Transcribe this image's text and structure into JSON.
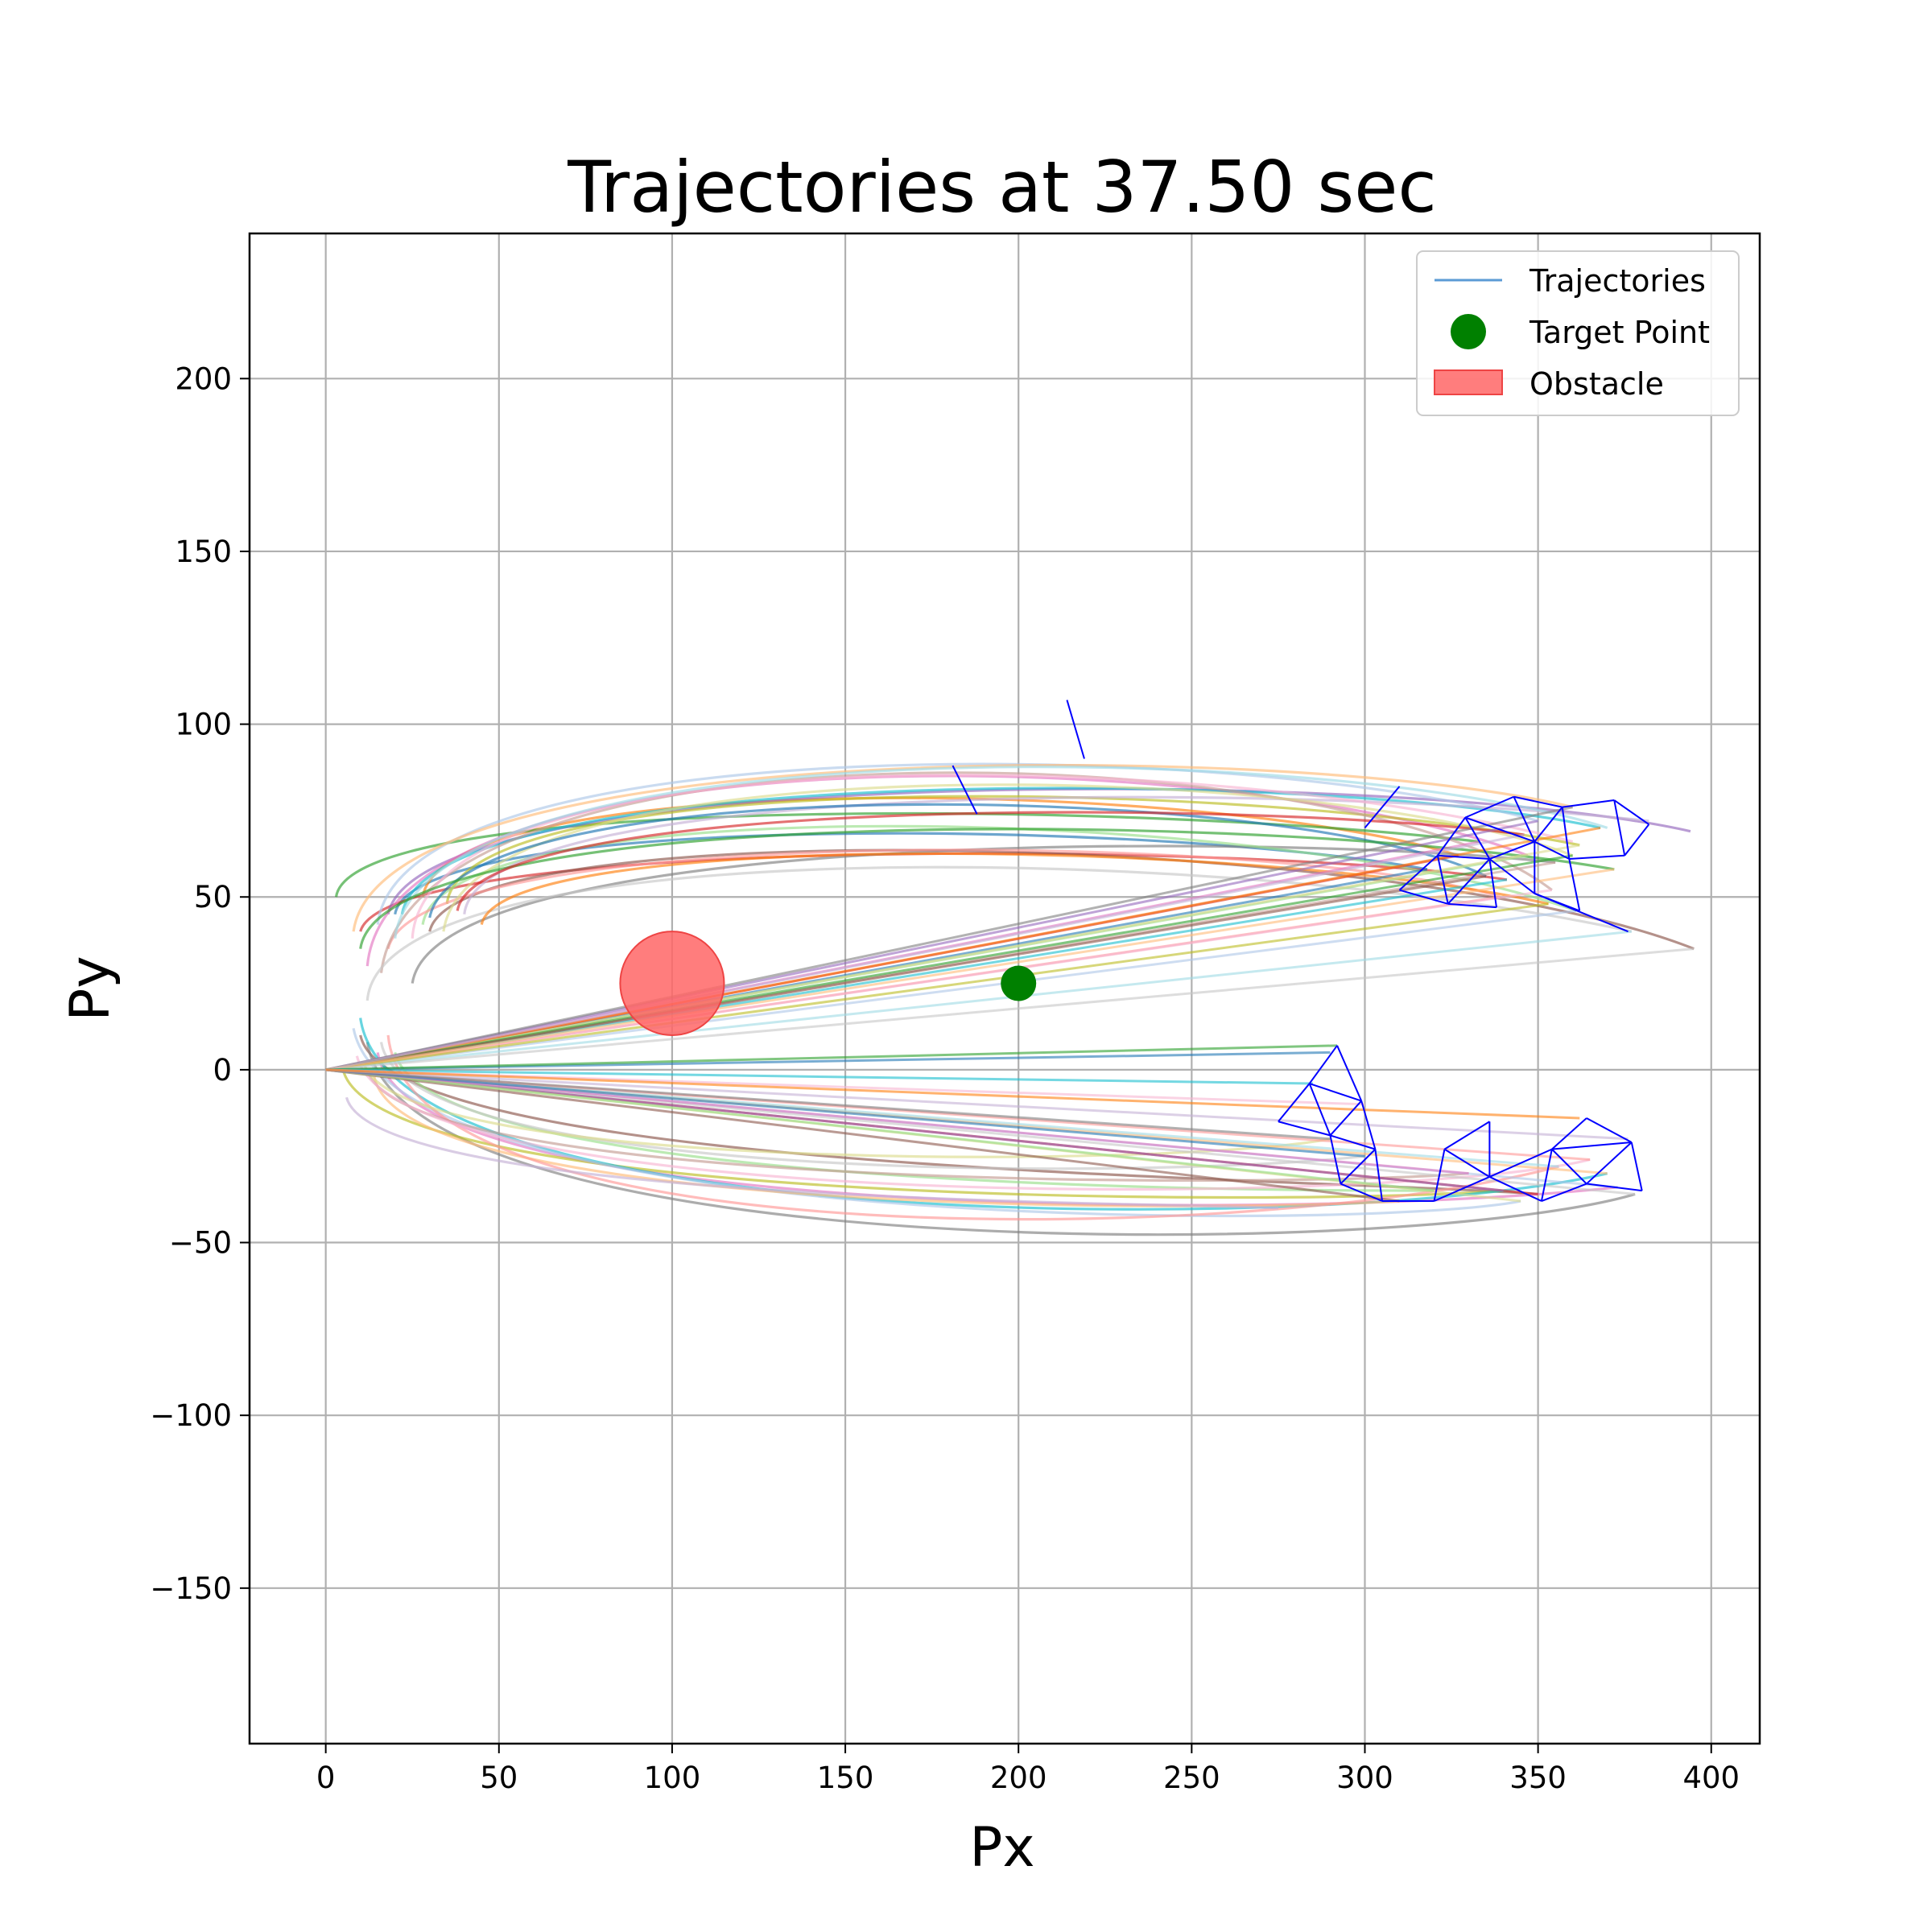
{
  "chart_data": {
    "type": "line",
    "title": "Trajectories at 37.50 sec",
    "xlabel": "Px",
    "ylabel": "Py",
    "xlim": [
      -22,
      414
    ],
    "ylim": [
      -195,
      242
    ],
    "xticks": [
      0,
      50,
      100,
      150,
      200,
      250,
      300,
      350,
      400
    ],
    "yticks": [
      -150,
      -100,
      -50,
      0,
      50,
      100,
      150,
      200
    ],
    "xtick_labels": [
      "0",
      "50",
      "100",
      "150",
      "200",
      "250",
      "300",
      "350",
      "400"
    ],
    "ytick_labels": [
      "−150",
      "−100",
      "−50",
      "0",
      "50",
      "100",
      "150",
      "200"
    ],
    "grid": true,
    "legend": {
      "position": "top-right",
      "entries": [
        {
          "label": "Trajectories",
          "kind": "line",
          "color": "#5b9bd5"
        },
        {
          "label": "Target Point",
          "kind": "marker",
          "color": "#008000"
        },
        {
          "label": "Obstacle",
          "kind": "patch",
          "color": "#ff6666"
        }
      ]
    },
    "target_point": {
      "x": 200,
      "y": 25,
      "color": "#008000"
    },
    "obstacle": {
      "cx": 100,
      "cy": 25,
      "r": 15,
      "color": "#ff6666"
    },
    "colors": [
      "#1f77b4",
      "#ff7f0e",
      "#2ca02c",
      "#d62728",
      "#9467bd",
      "#8c564b",
      "#e377c2",
      "#7f7f7f",
      "#bcbd22",
      "#17becf",
      "#aec7e8",
      "#ffbb78",
      "#98df8a",
      "#ff9896",
      "#c5b0d5",
      "#c49c94",
      "#f7b6d2",
      "#c7c7c7",
      "#dbdb8d",
      "#9edae5"
    ],
    "upper_trajectories": [
      {
        "s": [
          20,
          45
        ],
        "o": [
          120,
          75
        ],
        "e": [
          318,
          58
        ]
      },
      {
        "s": [
          28,
          50
        ],
        "o": [
          150,
          88
        ],
        "e": [
          327,
          62
        ]
      },
      {
        "s": [
          3,
          50
        ],
        "o": [
          80,
          80
        ],
        "e": [
          333,
          66
        ]
      },
      {
        "s": [
          10,
          40
        ],
        "o": [
          160,
          68
        ],
        "e": [
          341,
          55
        ]
      },
      {
        "s": [
          18,
          45
        ],
        "o": [
          200,
          90
        ],
        "e": [
          394,
          69
        ]
      },
      {
        "s": [
          30,
          40
        ],
        "o": [
          180,
          75
        ],
        "e": [
          395,
          35
        ]
      },
      {
        "s": [
          12,
          30
        ],
        "o": [
          140,
          100
        ],
        "e": [
          347,
          62
        ]
      },
      {
        "s": [
          25,
          25
        ],
        "o": [
          160,
          70
        ],
        "e": [
          355,
          60
        ]
      },
      {
        "s": [
          35,
          48
        ],
        "o": [
          120,
          88
        ],
        "e": [
          362,
          65
        ]
      },
      {
        "s": [
          22,
          45
        ],
        "o": [
          180,
          90
        ],
        "e": [
          368,
          70
        ]
      },
      {
        "s": [
          15,
          42
        ],
        "o": [
          140,
          100
        ],
        "e": [
          350,
          72
        ]
      },
      {
        "s": [
          8,
          40
        ],
        "o": [
          170,
          98
        ],
        "e": [
          360,
          76
        ]
      },
      {
        "s": [
          28,
          42
        ],
        "o": [
          150,
          82
        ],
        "e": [
          361,
          46
        ]
      },
      {
        "s": [
          18,
          35
        ],
        "o": [
          190,
          72
        ],
        "e": [
          339,
          50
        ]
      },
      {
        "s": [
          40,
          45
        ],
        "o": [
          130,
          85
        ],
        "e": [
          382,
          72
        ]
      },
      {
        "s": [
          16,
          28
        ],
        "o": [
          210,
          105
        ],
        "e": [
          354,
          52
        ]
      },
      {
        "s": [
          25,
          38
        ],
        "o": [
          100,
          98
        ],
        "e": [
          360,
          66
        ]
      },
      {
        "s": [
          12,
          20
        ],
        "o": [
          90,
          70
        ],
        "e": [
          377,
          40
        ]
      },
      {
        "s": [
          34,
          40
        ],
        "o": [
          180,
          95
        ],
        "e": [
          360,
          62
        ]
      },
      {
        "s": [
          20,
          38
        ],
        "o": [
          170,
          100
        ],
        "e": [
          370,
          70
        ]
      },
      {
        "s": [
          30,
          44
        ],
        "o": [
          200,
          88
        ],
        "e": [
          335,
          56
        ]
      },
      {
        "s": [
          45,
          42
        ],
        "o": [
          150,
          70
        ],
        "e": [
          353,
          48
        ]
      },
      {
        "s": [
          10,
          35
        ],
        "o": [
          130,
          78
        ],
        "e": [
          372,
          58
        ]
      },
      {
        "s": [
          38,
          46
        ],
        "o": [
          160,
          80
        ],
        "e": [
          346,
          68
        ]
      }
    ],
    "lower_trajectories": [
      {
        "s": [
          10,
          10
        ],
        "o": [
          180,
          -30
        ],
        "e": [
          350,
          -36
        ]
      },
      {
        "s": [
          15,
          5
        ],
        "o": [
          160,
          -45
        ],
        "e": [
          373,
          -34
        ]
      },
      {
        "s": [
          12,
          8
        ],
        "o": [
          220,
          -58
        ],
        "e": [
          378,
          -36
        ]
      },
      {
        "s": [
          5,
          0
        ],
        "o": [
          200,
          -40
        ],
        "e": [
          340,
          -35
        ]
      },
      {
        "s": [
          10,
          15
        ],
        "o": [
          190,
          -50
        ],
        "e": [
          370,
          -30
        ]
      },
      {
        "s": [
          8,
          12
        ],
        "o": [
          240,
          -48
        ],
        "e": [
          345,
          -38
        ]
      },
      {
        "s": [
          14,
          -2
        ],
        "o": [
          170,
          -42
        ],
        "e": [
          310,
          -38
        ]
      },
      {
        "s": [
          20,
          5
        ],
        "o": [
          210,
          -35
        ],
        "e": [
          320,
          -35
        ]
      },
      {
        "s": [
          18,
          10
        ],
        "o": [
          140,
          -55
        ],
        "e": [
          356,
          -28
        ]
      },
      {
        "s": [
          6,
          -8
        ],
        "o": [
          160,
          -38
        ],
        "e": [
          275,
          -40
        ]
      },
      {
        "s": [
          12,
          0
        ],
        "o": [
          200,
          -35
        ],
        "e": [
          330,
          -30
        ]
      },
      {
        "s": [
          9,
          4
        ],
        "o": [
          230,
          -42
        ],
        "e": [
          365,
          -26
        ]
      },
      {
        "s": [
          16,
          8
        ],
        "o": [
          150,
          -33
        ],
        "e": [
          300,
          -25
        ]
      },
      {
        "s": [
          11,
          2
        ],
        "o": [
          180,
          -30
        ],
        "e": [
          290,
          -20
        ]
      }
    ],
    "fan_lines_upper_ends": [
      [
        318,
        58
      ],
      [
        327,
        62
      ],
      [
        333,
        66
      ],
      [
        341,
        55
      ],
      [
        347,
        62
      ],
      [
        355,
        60
      ],
      [
        362,
        65
      ],
      [
        368,
        70
      ],
      [
        350,
        72
      ],
      [
        360,
        76
      ],
      [
        361,
        46
      ],
      [
        339,
        50
      ],
      [
        354,
        52
      ],
      [
        377,
        40
      ],
      [
        360,
        62
      ],
      [
        335,
        56
      ],
      [
        353,
        48
      ],
      [
        372,
        58
      ],
      [
        346,
        68
      ],
      [
        395,
        35
      ],
      [
        290,
        5
      ]
    ],
    "fan_lines_lower_ends": [
      [
        292,
        7
      ],
      [
        285,
        -4
      ],
      [
        300,
        -10
      ],
      [
        350,
        -36
      ],
      [
        373,
        -34
      ],
      [
        378,
        -36
      ],
      [
        340,
        -35
      ],
      [
        370,
        -30
      ],
      [
        345,
        -38
      ],
      [
        310,
        -38
      ],
      [
        320,
        -35
      ],
      [
        356,
        -28
      ],
      [
        330,
        -30
      ],
      [
        365,
        -26
      ],
      [
        300,
        -25
      ],
      [
        290,
        -20
      ],
      [
        376,
        -20
      ],
      [
        362,
        -14
      ]
    ],
    "formation_segments": [
      [
        [
          310,
          52
        ],
        [
          321,
          62
        ]
      ],
      [
        [
          321,
          62
        ],
        [
          324,
          48
        ]
      ],
      [
        [
          324,
          48
        ],
        [
          310,
          52
        ]
      ],
      [
        [
          321,
          62
        ],
        [
          329,
          73
        ]
      ],
      [
        [
          329,
          73
        ],
        [
          336,
          61
        ]
      ],
      [
        [
          336,
          61
        ],
        [
          321,
          62
        ]
      ],
      [
        [
          324,
          48
        ],
        [
          336,
          61
        ]
      ],
      [
        [
          336,
          61
        ],
        [
          338,
          47
        ]
      ],
      [
        [
          338,
          47
        ],
        [
          324,
          48
        ]
      ],
      [
        [
          329,
          73
        ],
        [
          343,
          79
        ]
      ],
      [
        [
          343,
          79
        ],
        [
          349,
          66
        ]
      ],
      [
        [
          349,
          66
        ],
        [
          329,
          73
        ]
      ],
      [
        [
          336,
          61
        ],
        [
          349,
          66
        ]
      ],
      [
        [
          349,
          66
        ],
        [
          349,
          51
        ]
      ],
      [
        [
          349,
          51
        ],
        [
          336,
          61
        ]
      ],
      [
        [
          343,
          79
        ],
        [
          357,
          76
        ]
      ],
      [
        [
          357,
          76
        ],
        [
          349,
          66
        ]
      ],
      [
        [
          349,
          66
        ],
        [
          359,
          61
        ]
      ],
      [
        [
          359,
          61
        ],
        [
          357,
          76
        ]
      ],
      [
        [
          357,
          76
        ],
        [
          372,
          78
        ]
      ],
      [
        [
          372,
          78
        ],
        [
          375,
          62
        ]
      ],
      [
        [
          375,
          62
        ],
        [
          359,
          61
        ]
      ],
      [
        [
          372,
          78
        ],
        [
          382,
          71
        ]
      ],
      [
        [
          382,
          71
        ],
        [
          375,
          62
        ]
      ],
      [
        [
          349,
          51
        ],
        [
          362,
          46
        ]
      ],
      [
        [
          362,
          46
        ],
        [
          359,
          61
        ]
      ],
      [
        [
          349,
          51
        ],
        [
          376,
          40
        ]
      ],
      [
        [
          300,
          70
        ],
        [
          310,
          82
        ]
      ],
      [
        [
          181,
          88
        ],
        [
          188,
          74
        ]
      ],
      [
        [
          214,
          107
        ],
        [
          219,
          90
        ]
      ],
      [
        [
          275,
          -15
        ],
        [
          284,
          -4
        ]
      ],
      [
        [
          284,
          -4
        ],
        [
          290,
          -19
        ]
      ],
      [
        [
          290,
          -19
        ],
        [
          275,
          -15
        ]
      ],
      [
        [
          284,
          -4
        ],
        [
          292,
          7
        ]
      ],
      [
        [
          292,
          7
        ],
        [
          299,
          -9
        ]
      ],
      [
        [
          299,
          -9
        ],
        [
          284,
          -4
        ]
      ],
      [
        [
          290,
          -19
        ],
        [
          299,
          -9
        ]
      ],
      [
        [
          299,
          -9
        ],
        [
          303,
          -23
        ]
      ],
      [
        [
          303,
          -23
        ],
        [
          290,
          -19
        ]
      ],
      [
        [
          290,
          -19
        ],
        [
          293,
          -33
        ]
      ],
      [
        [
          293,
          -33
        ],
        [
          303,
          -23
        ]
      ],
      [
        [
          293,
          -33
        ],
        [
          305,
          -38
        ]
      ],
      [
        [
          305,
          -38
        ],
        [
          303,
          -23
        ]
      ],
      [
        [
          305,
          -38
        ],
        [
          320,
          -38
        ]
      ],
      [
        [
          320,
          -38
        ],
        [
          323,
          -23
        ]
      ],
      [
        [
          323,
          -23
        ],
        [
          336,
          -15
        ]
      ],
      [
        [
          336,
          -15
        ],
        [
          336,
          -31
        ]
      ],
      [
        [
          336,
          -31
        ],
        [
          323,
          -23
        ]
      ],
      [
        [
          320,
          -38
        ],
        [
          336,
          -31
        ]
      ],
      [
        [
          336,
          -31
        ],
        [
          351,
          -38
        ]
      ],
      [
        [
          351,
          -38
        ],
        [
          354,
          -23
        ]
      ],
      [
        [
          354,
          -23
        ],
        [
          336,
          -31
        ]
      ],
      [
        [
          354,
          -23
        ],
        [
          364,
          -14
        ]
      ],
      [
        [
          364,
          -14
        ],
        [
          377,
          -21
        ]
      ],
      [
        [
          377,
          -21
        ],
        [
          354,
          -23
        ]
      ],
      [
        [
          354,
          -23
        ],
        [
          364,
          -33
        ]
      ],
      [
        [
          364,
          -33
        ],
        [
          377,
          -21
        ]
      ],
      [
        [
          364,
          -33
        ],
        [
          380,
          -35
        ]
      ],
      [
        [
          380,
          -35
        ],
        [
          377,
          -21
        ]
      ],
      [
        [
          351,
          -38
        ],
        [
          364,
          -33
        ]
      ]
    ]
  }
}
